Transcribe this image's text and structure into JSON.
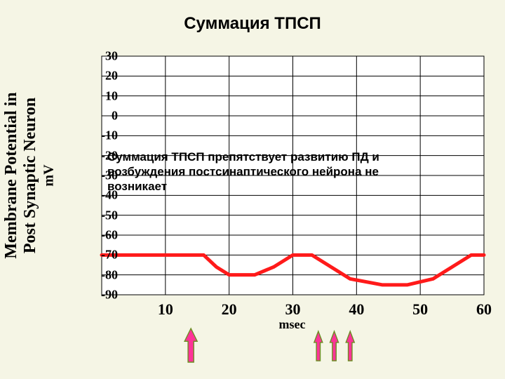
{
  "title": "Суммация ТПСП",
  "ylabel_line1": "Membrane Potential in",
  "ylabel_line2": "Post Synaptic Neuron",
  "ylabel_unit": "mV",
  "caption_l1": "Суммация ТПСП препятствует развитию ПД и",
  "caption_l2": "возбуждения постсинаптического нейрона не",
  "caption_l3": "возникает",
  "chart": {
    "type": "line",
    "background_color": "#f5f5e5",
    "grid_color": "#000000",
    "plot_border_color": "#000000",
    "line_color": "#ff1a1a",
    "line_width": 5,
    "xlim": [
      0,
      60
    ],
    "ylim": [
      -90,
      30
    ],
    "x_ticks": [
      10,
      20,
      30,
      40,
      50,
      60
    ],
    "y_ticks": [
      30,
      20,
      10,
      0,
      -10,
      -20,
      -30,
      -40,
      -50,
      -60,
      -70,
      -80,
      -90
    ],
    "x_gridlines": [
      10,
      20,
      30,
      40,
      50
    ],
    "y_gridlines": [
      20,
      10,
      0,
      -10,
      -20,
      -30,
      -40,
      -50,
      -60,
      -70,
      -80
    ],
    "x_axis_label": "msec",
    "x_label_fontsize": 18,
    "y_tick_fontsize": 18,
    "x_tick_fontsize": 22,
    "data_points": [
      [
        0,
        -70
      ],
      [
        16,
        -70
      ],
      [
        18,
        -76
      ],
      [
        20,
        -80
      ],
      [
        24,
        -80
      ],
      [
        27,
        -76
      ],
      [
        30,
        -70
      ],
      [
        33,
        -70
      ],
      [
        36,
        -76
      ],
      [
        39,
        -82
      ],
      [
        44,
        -85
      ],
      [
        48,
        -85
      ],
      [
        52,
        -82
      ],
      [
        55,
        -76
      ],
      [
        58,
        -70
      ],
      [
        60,
        -70
      ]
    ]
  },
  "arrows": {
    "big": {
      "x": 14,
      "color_fill": "#ff3399",
      "color_stroke": "#6b8e23",
      "width": 18,
      "height": 48
    },
    "small": [
      {
        "x": 34.0
      },
      {
        "x": 36.5
      },
      {
        "x": 39.0
      }
    ],
    "small_style": {
      "color_fill": "#ff3399",
      "color_stroke": "#6b8e23",
      "width": 12,
      "height": 42
    }
  }
}
